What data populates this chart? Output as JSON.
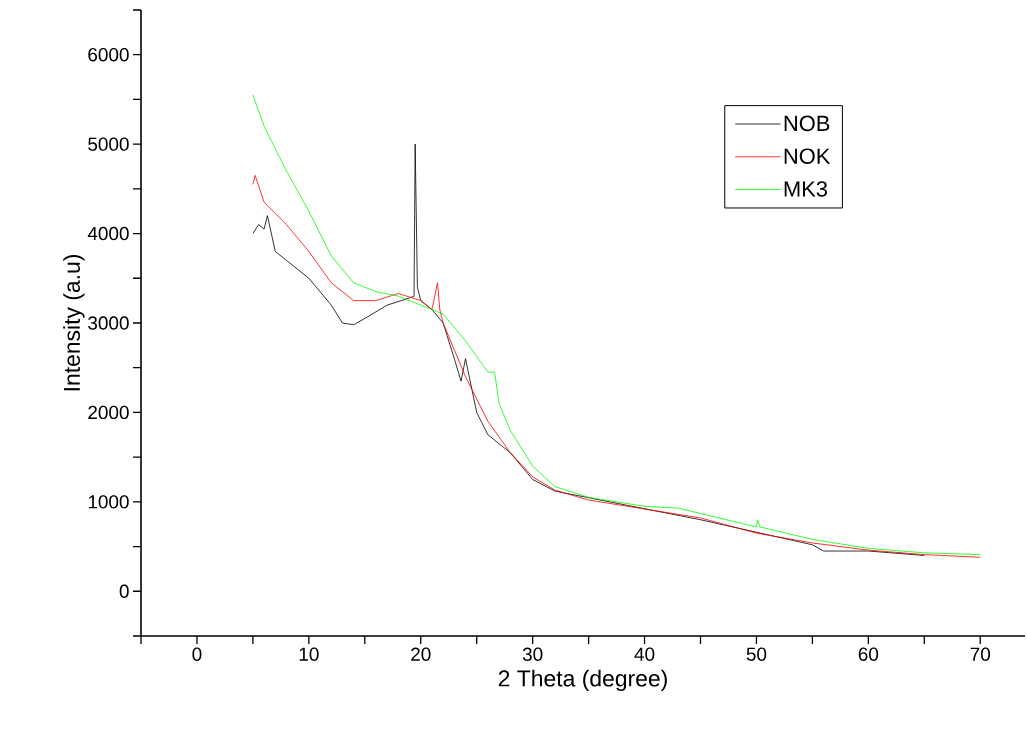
{
  "chart_data": {
    "type": "line",
    "xlabel": "2 Theta (degree)",
    "ylabel": "Intensity (a.u)",
    "xlim": [
      -5,
      74
    ],
    "ylim": [
      -500,
      6500
    ],
    "xticks": [
      {
        "value": -5,
        "label": null
      },
      0,
      {
        "value": 5,
        "label": null
      },
      10,
      {
        "value": 15,
        "label": null
      },
      20,
      {
        "value": 25,
        "label": null
      },
      30,
      {
        "value": 35,
        "label": null
      },
      40,
      {
        "value": 45,
        "label": null
      },
      50,
      {
        "value": 55,
        "label": null
      },
      60,
      {
        "value": 65,
        "label": null
      },
      70
    ],
    "yticks": [
      {
        "value": -500,
        "label": null
      },
      0,
      {
        "value": 500,
        "label": null
      },
      1000,
      {
        "value": 1500,
        "label": null
      },
      2000,
      {
        "value": 2500,
        "label": null
      },
      3000,
      {
        "value": 3500,
        "label": null
      },
      4000,
      {
        "value": 4500,
        "label": null
      },
      5000,
      {
        "value": 5500,
        "label": null
      },
      6000,
      {
        "value": 6500,
        "label": null
      }
    ],
    "legend": "top right",
    "series": [
      {
        "name": "NOB",
        "color": "#000000",
        "x": [
          5,
          5.5,
          6,
          6.3,
          7,
          8,
          10,
          12,
          13,
          14,
          15,
          17,
          19,
          19.4,
          19.5,
          19.7,
          20,
          21,
          22,
          23,
          23.6,
          24,
          24.5,
          25,
          26,
          28,
          30,
          32,
          35,
          40,
          45,
          50,
          55,
          56,
          60,
          65
        ],
        "values": [
          4000,
          4100,
          4050,
          4200,
          3800,
          3700,
          3500,
          3200,
          3000,
          2980,
          3050,
          3200,
          3280,
          3300,
          5000,
          3400,
          3250,
          3150,
          3000,
          2600,
          2350,
          2600,
          2300,
          2000,
          1750,
          1550,
          1250,
          1120,
          null,
          null,
          800,
          null,
          520,
          450,
          450,
          400
        ]
      },
      {
        "name": "NOK",
        "color": "#ff0000",
        "x": [
          5,
          5.2,
          6,
          8,
          10,
          12,
          14,
          16,
          18,
          20,
          21,
          21.5,
          21.7,
          22,
          23,
          24,
          25,
          26,
          28,
          30,
          32,
          35,
          40,
          45,
          50,
          55,
          60,
          65,
          70
        ],
        "values": [
          4550,
          4650,
          4350,
          4100,
          3800,
          3450,
          3250,
          3250,
          3330,
          3250,
          3150,
          3450,
          3150,
          3000,
          2700,
          2400,
          2150,
          1900,
          1550,
          1280,
          1130,
          1020,
          920,
          820,
          650,
          540,
          460,
          410,
          380
        ]
      },
      {
        "name": "MK3",
        "color": "#00ff00",
        "x": [
          5,
          6,
          8,
          10,
          12,
          14,
          16,
          18,
          20,
          22,
          24,
          26,
          26.6,
          27,
          28,
          30,
          32,
          35,
          40,
          43,
          45,
          50,
          50.1,
          50.3,
          55,
          60,
          65,
          70
        ],
        "values": [
          5550,
          5200,
          4700,
          4250,
          3750,
          3450,
          3350,
          3300,
          3200,
          3100,
          2800,
          2450,
          2450,
          2100,
          1800,
          1400,
          1170,
          1050,
          950,
          930,
          870,
          720,
          800,
          720,
          580,
          480,
          430,
          410
        ]
      }
    ]
  }
}
